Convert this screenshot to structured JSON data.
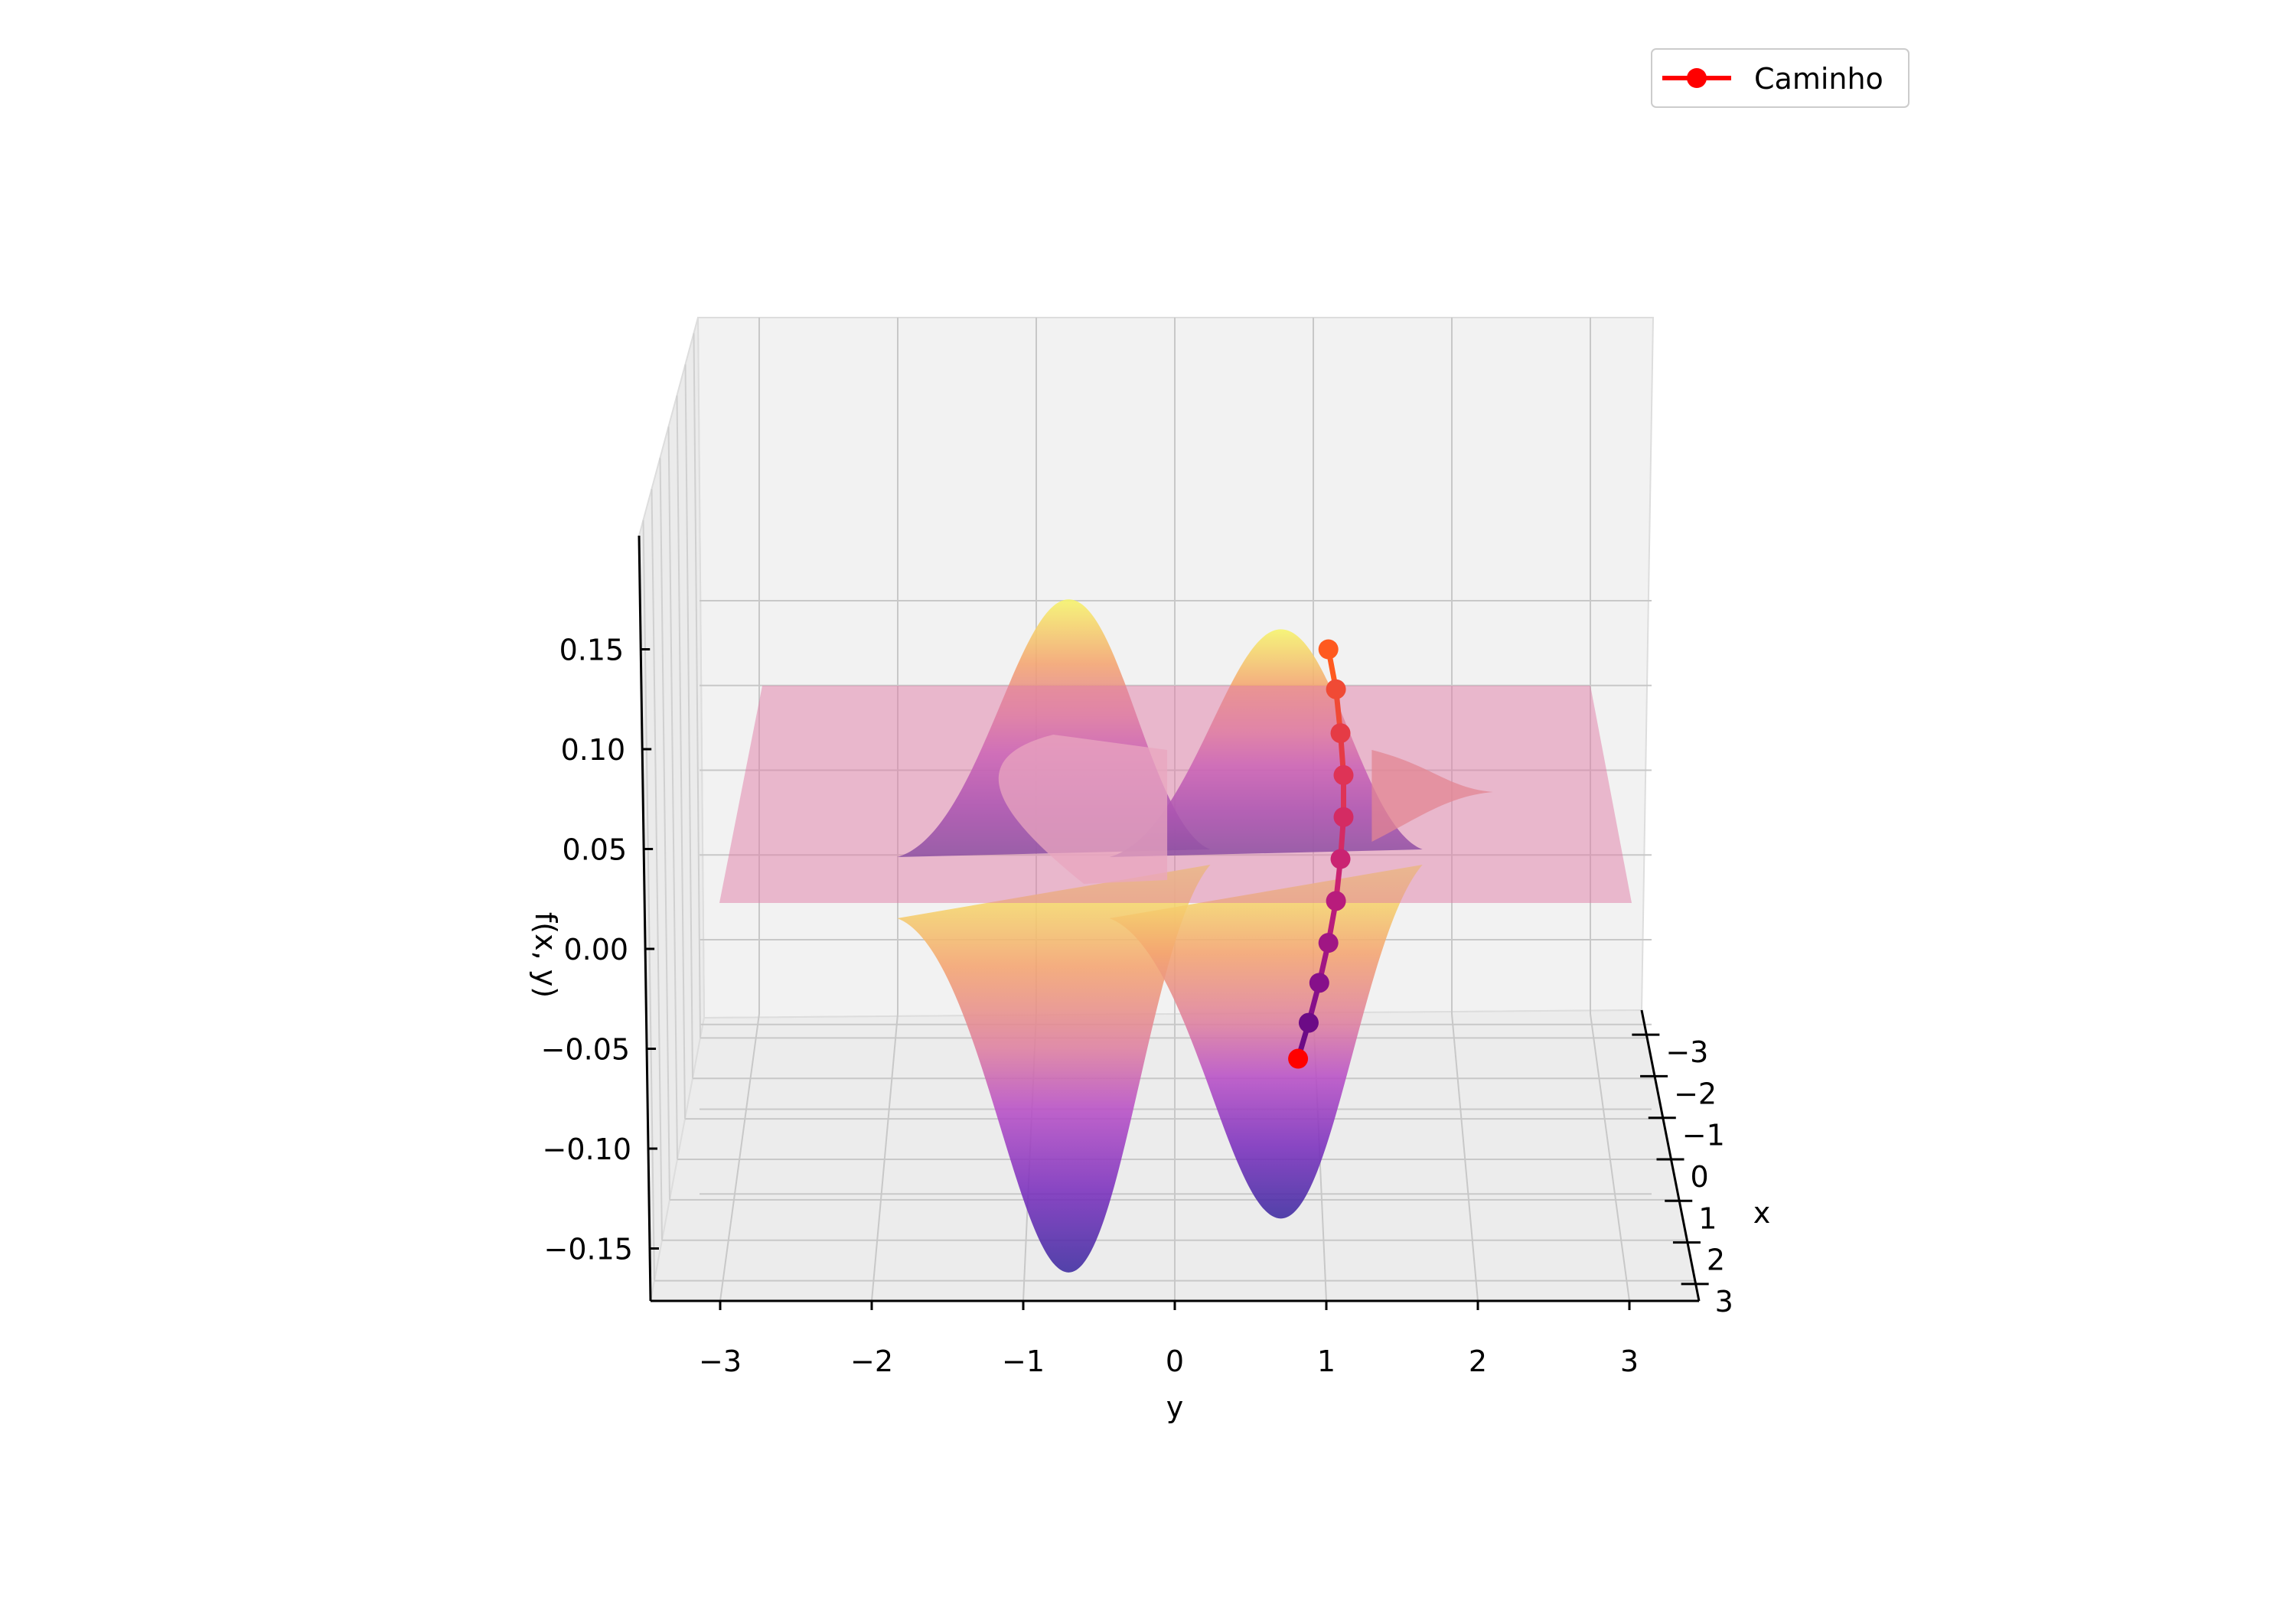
{
  "chart_data": {
    "type": "surface3d",
    "function_label": "f(x, y)",
    "xlabel": "x",
    "ylabel": "y",
    "zlabel": "f(x, y)",
    "xlim": [
      -3.5,
      3.5
    ],
    "ylim": [
      -3.5,
      3.5
    ],
    "zlim": [
      -0.18,
      0.18
    ],
    "x_ticks": [
      -3,
      -2,
      -1,
      0,
      1,
      2,
      3
    ],
    "x_tick_labels": [
      "−3",
      "−2",
      "−1",
      "0",
      "1",
      "2",
      "3"
    ],
    "y_ticks": [
      -3,
      -2,
      -1,
      0,
      1,
      2,
      3
    ],
    "y_tick_labels": [
      "−3",
      "−2",
      "−1",
      "0",
      "1",
      "2",
      "3"
    ],
    "z_ticks": [
      -0.15,
      -0.1,
      -0.05,
      0.0,
      0.05,
      0.1,
      0.15
    ],
    "z_tick_labels": [
      "−0.15",
      "−0.10",
      "−0.05",
      "0.00",
      "0.05",
      "0.10",
      "0.15"
    ],
    "colormap": "plasma",
    "surface_extrema": [
      {
        "kind": "max",
        "y": -0.7,
        "z": 0.175
      },
      {
        "kind": "min",
        "y": -0.7,
        "z": -0.162
      },
      {
        "kind": "max",
        "y": 0.7,
        "z": 0.16
      },
      {
        "kind": "min",
        "y": 0.7,
        "z": -0.135
      }
    ],
    "plane": {
      "z": 0.07,
      "color": "#e07ba6",
      "opacity": 0.5
    },
    "grid": true,
    "legend": {
      "position": "top-right",
      "entries": [
        {
          "label": "Caminho",
          "color": "#ff0000",
          "marker": "circle"
        }
      ]
    },
    "series": [
      {
        "name": "Caminho",
        "color": "#ff0000",
        "colormap": "plasma",
        "points": [
          {
            "y": 1.15,
            "z": 0.15
          },
          {
            "y": 1.2,
            "z": 0.13
          },
          {
            "y": 1.23,
            "z": 0.108
          },
          {
            "y": 1.25,
            "z": 0.087
          },
          {
            "y": 1.25,
            "z": 0.066
          },
          {
            "y": 1.23,
            "z": 0.045
          },
          {
            "y": 1.2,
            "z": 0.024
          },
          {
            "y": 1.15,
            "z": 0.003
          },
          {
            "y": 1.09,
            "z": -0.017
          },
          {
            "y": 1.02,
            "z": -0.037
          },
          {
            "y": 0.95,
            "z": -0.055
          }
        ]
      }
    ]
  }
}
